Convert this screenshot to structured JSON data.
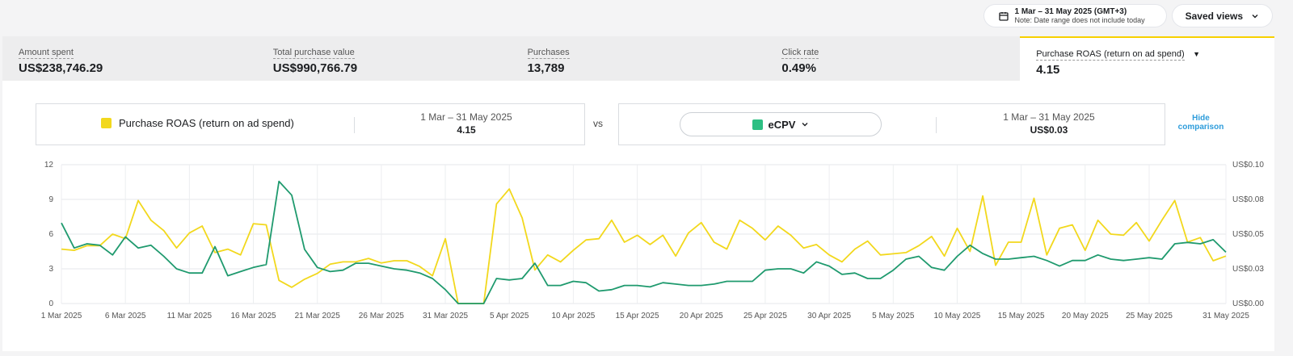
{
  "header": {
    "date_range_label": "1 Mar – 31 May 2025 (GMT+3)",
    "date_range_note": "Note: Date range does not include today",
    "saved_views_label": "Saved views",
    "calendar_icon": "calendar-icon"
  },
  "metrics": [
    {
      "label": "Amount spent",
      "value": "US$238,746.29"
    },
    {
      "label": "Total purchase value",
      "value": "US$990,766.79"
    },
    {
      "label": "Purchases",
      "value": "13,789"
    },
    {
      "label": "Click rate",
      "value": "0.49%"
    },
    {
      "label": "Purchase ROAS (return on ad spend)",
      "value": "4.15"
    }
  ],
  "comparison": {
    "left_metric": "Purchase ROAS (return on ad spend)",
    "left_range": "1 Mar – 31 May 2025",
    "left_value": "4.15",
    "vs_label": "vs",
    "right_metric": "eCPV",
    "right_range": "1 Mar – 31 May 2025",
    "right_value": "US$0.03",
    "hide_label_line1": "Hide",
    "hide_label_line2": "comparison"
  },
  "colors": {
    "roas": "#f2d81d",
    "ecpv": "#1f9a6e",
    "accent_border": "#f7d000"
  },
  "chart_data": {
    "type": "line",
    "x_tick_labels": [
      "1 Mar 2025",
      "6 Mar 2025",
      "11 Mar 2025",
      "16 Mar 2025",
      "21 Mar 2025",
      "26 Mar 2025",
      "31 Mar 2025",
      "5 Apr 2025",
      "10 Apr 2025",
      "15 Apr 2025",
      "20 Apr 2025",
      "25 Apr 2025",
      "30 Apr 2025",
      "5 May 2025",
      "10 May 2025",
      "15 May 2025",
      "20 May 2025",
      "25 May 2025",
      "31 May 2025"
    ],
    "y_left_ticks": [
      "0",
      "3",
      "6",
      "9",
      "12"
    ],
    "y_left_range": [
      0,
      12
    ],
    "y_right_ticks": [
      "US$0.00",
      "US$0.03",
      "US$0.05",
      "US$0.08",
      "US$0.10"
    ],
    "y_right_range": [
      0,
      0.1
    ],
    "grid": true,
    "series": [
      {
        "name": "Purchase ROAS (return on ad spend)",
        "axis": "left",
        "values": [
          4.7,
          4.6,
          5.0,
          5.0,
          6.0,
          5.6,
          8.9,
          7.2,
          6.3,
          4.8,
          6.1,
          6.7,
          4.4,
          4.7,
          4.2,
          6.9,
          6.8,
          2.0,
          1.4,
          2.1,
          2.6,
          3.4,
          3.6,
          3.6,
          3.9,
          3.5,
          3.7,
          3.7,
          3.2,
          2.4,
          5.6,
          0,
          0,
          0,
          8.6,
          9.9,
          7.4,
          2.9,
          4.2,
          3.6,
          4.6,
          5.5,
          5.6,
          7.2,
          5.3,
          5.9,
          5.1,
          5.9,
          4.1,
          6.1,
          7.0,
          5.3,
          4.7,
          7.2,
          6.5,
          5.5,
          6.7,
          5.9,
          4.8,
          5.1,
          4.2,
          3.6,
          4.7,
          5.4,
          4.2,
          4.3,
          4.4,
          5.0,
          5.8,
          4.1,
          6.5,
          4.5,
          9.3,
          3.3,
          5.3,
          5.3,
          9.1,
          4.2,
          6.5,
          6.8,
          4.6,
          7.2,
          6.0,
          5.9,
          7.0,
          5.4,
          7.2,
          8.9,
          5.3,
          5.7,
          3.7,
          4.1
        ]
      },
      {
        "name": "eCPV",
        "axis": "right",
        "values": [
          0.058,
          0.04,
          0.043,
          0.042,
          0.035,
          0.048,
          0.04,
          0.042,
          0.034,
          0.025,
          0.022,
          0.022,
          0.041,
          0.02,
          0.023,
          0.026,
          0.028,
          0.088,
          0.078,
          0.039,
          0.026,
          0.023,
          0.024,
          0.029,
          0.029,
          0.027,
          0.025,
          0.024,
          0.022,
          0.018,
          0.01,
          0.0,
          0.0,
          0.0,
          0.018,
          0.017,
          0.018,
          0.029,
          0.013,
          0.013,
          0.016,
          0.015,
          0.009,
          0.01,
          0.013,
          0.013,
          0.012,
          0.015,
          0.014,
          0.013,
          0.013,
          0.014,
          0.016,
          0.016,
          0.016,
          0.024,
          0.025,
          0.025,
          0.022,
          0.03,
          0.027,
          0.021,
          0.022,
          0.018,
          0.018,
          0.024,
          0.032,
          0.034,
          0.026,
          0.024,
          0.034,
          0.042,
          0.036,
          0.032,
          0.032,
          0.033,
          0.034,
          0.031,
          0.027,
          0.031,
          0.031,
          0.035,
          0.032,
          0.031,
          0.032,
          0.033,
          0.032,
          0.043,
          0.044,
          0.043,
          0.046,
          0.037
        ]
      }
    ]
  }
}
